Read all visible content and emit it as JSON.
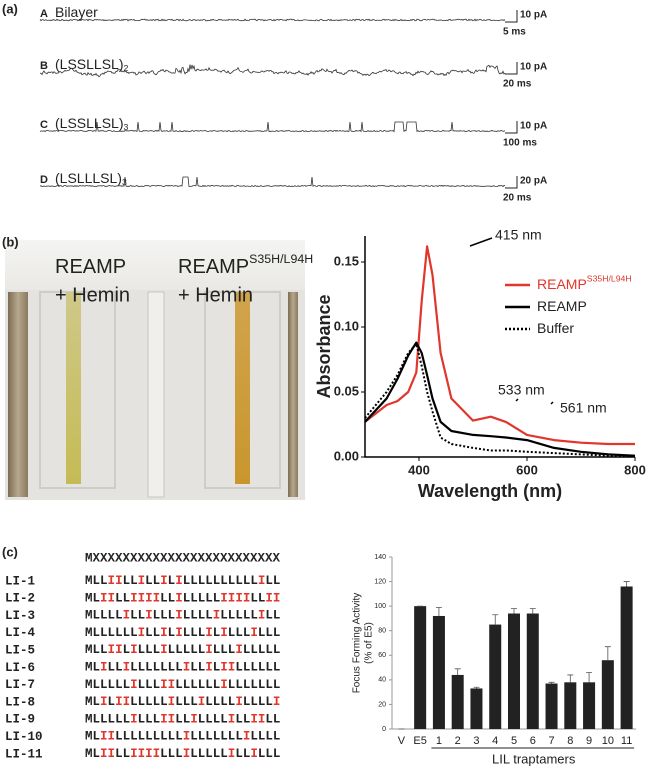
{
  "panel_a": {
    "label": "(a)",
    "rows": [
      {
        "letter": "A",
        "name": "Bilayer",
        "scale_y": "10 pA",
        "scale_x": "5 ms"
      },
      {
        "letter": "B",
        "name": "(LSSLLSL)",
        "subscript": "2",
        "scale_y": "10 pA",
        "scale_x": "20 ms"
      },
      {
        "letter": "C",
        "name": "(LSSLLSL)",
        "subscript": "3",
        "scale_y": "10 pA",
        "scale_x": "100 ms"
      },
      {
        "letter": "D",
        "name": "(LSLLLSL)",
        "subscript": "3",
        "scale_y": "20 pA",
        "scale_x": "20 ms"
      }
    ]
  },
  "panel_b": {
    "label": "(b)",
    "photo_labels": [
      {
        "name": "REAMP",
        "line2": "+ Hemin"
      },
      {
        "name": "REAMP",
        "superscript": "S35H/L94H",
        "line2": "+ Hemin"
      }
    ]
  },
  "panel_c": {
    "label": "(c)",
    "header": "MXXXXXXXXXXXXXXXXXXXXXXXXX",
    "rows": [
      {
        "label": "LI-1",
        "sequence": "MLLIILLILLILILLLLLLLLLLILL"
      },
      {
        "label": "LI-2",
        "sequence": "MLIILLIIIILLILLLLLIIIILLII"
      },
      {
        "label": "LI-3",
        "sequence": "MLLLLILLILLLILLLLILLLLLILL"
      },
      {
        "label": "LI-4",
        "sequence": "MLLLLLLILLILILLLILILLLILLL"
      },
      {
        "label": "LI-5",
        "sequence": "MLLIILILLLILLLLLILLLILLLLL"
      },
      {
        "label": "LI-6",
        "sequence": "MLILLILLLLLLLILLILIILLLLLL"
      },
      {
        "label": "LI-7",
        "sequence": "MLLLLLILLLIILLLLLLILLLLLLL"
      },
      {
        "label": "LI-8",
        "sequence": "MLILIILLLLLILLLILLLLILLLLI"
      },
      {
        "label": "LI-9",
        "sequence": "MLLLLLILLLIILLILLLLILLIILL"
      },
      {
        "label": "LI-10",
        "sequence": "MLIILLLLLLLLLILLLLLLLILLLL"
      },
      {
        "label": "LI-11",
        "sequence": "MLIILLIIIILLLILLLLLILLILLL"
      }
    ]
  },
  "chart_data": [
    {
      "type": "line",
      "xlabel": "Wavelength (nm)",
      "ylabel": "Absorbance",
      "x": [
        300,
        340,
        360,
        380,
        395,
        405,
        415,
        425,
        440,
        460,
        500,
        533,
        561,
        600,
        650,
        700,
        750,
        800
      ],
      "series": [
        {
          "name": "REAMP",
          "superscript": "S35H/L94H",
          "color": "#e0362c",
          "style": "solid",
          "values": [
            0.027,
            0.04,
            0.043,
            0.05,
            0.065,
            0.12,
            0.162,
            0.14,
            0.08,
            0.045,
            0.028,
            0.031,
            0.027,
            0.017,
            0.013,
            0.011,
            0.01,
            0.01
          ]
        },
        {
          "name": "REAMP",
          "color": "#000000",
          "style": "solid",
          "values": [
            0.027,
            0.045,
            0.06,
            0.078,
            0.088,
            0.08,
            0.063,
            0.045,
            0.027,
            0.02,
            0.017,
            0.016,
            0.015,
            0.013,
            0.007,
            0.004,
            0.002,
            0.001
          ]
        },
        {
          "name": "Buffer",
          "color": "#000000",
          "style": "dotted",
          "values": [
            0.03,
            0.05,
            0.063,
            0.08,
            0.087,
            0.07,
            0.05,
            0.035,
            0.015,
            0.01,
            0.007,
            0.005,
            0.005,
            0.004,
            0.003,
            0.002,
            0.001,
            0.001
          ]
        }
      ],
      "annotations": [
        "415 nm",
        "533 nm",
        "561 nm"
      ],
      "xlim": [
        300,
        800
      ],
      "xticks": [
        400,
        600,
        800
      ],
      "ylim": [
        0,
        0.17
      ],
      "yticks": [
        {
          "value": 0,
          "label": "0.00"
        },
        {
          "value": 0.05,
          "label": "0.05"
        },
        {
          "value": 0.1,
          "label": "0.10"
        },
        {
          "value": 0.15,
          "label": "0.15"
        }
      ]
    },
    {
      "type": "bar",
      "ylabel": [
        "Focus Forming Activity",
        "(% of E5)"
      ],
      "xlabel": "LIL traptamers",
      "categories": [
        "V",
        "E5",
        "1",
        "2",
        "3",
        "4",
        "5",
        "6",
        "7",
        "8",
        "9",
        "10",
        "11"
      ],
      "values": [
        0,
        100,
        92,
        44,
        33,
        85,
        94,
        94,
        37,
        38,
        38,
        56,
        116
      ],
      "errors": [
        0,
        0,
        7,
        5,
        1,
        8,
        4,
        4,
        1,
        6,
        8,
        11,
        4
      ],
      "color": "#222222",
      "ylim": [
        0,
        140
      ],
      "yticks": [
        0,
        20,
        40,
        60,
        80,
        100,
        120,
        140
      ]
    }
  ]
}
